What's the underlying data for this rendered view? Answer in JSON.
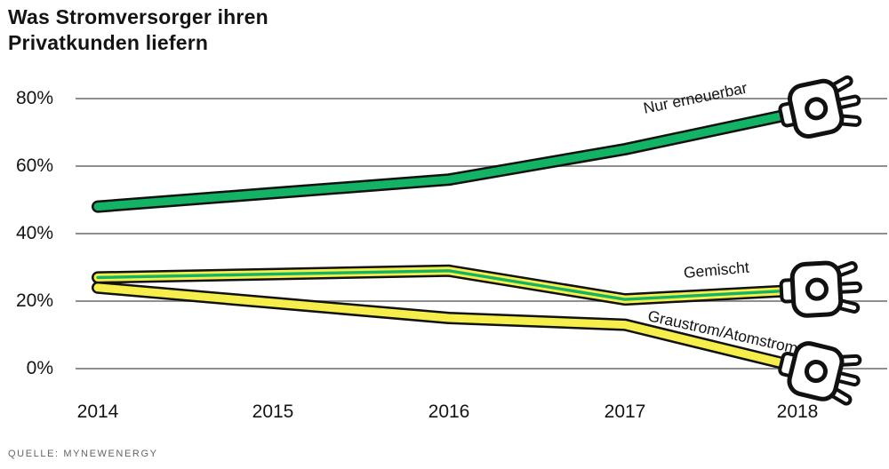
{
  "title": {
    "line1": "Was Stromversorger ihren",
    "line2": "Privatkunden liefern"
  },
  "source": "QUELLE: MYNEWENERGY",
  "colors": {
    "green": "#12b364",
    "yellow": "#f6ef4b",
    "cable_outline": "#111111",
    "grid": "#8f8f8f",
    "text": "#141414",
    "source_text": "#646464",
    "plug_fill": "#ffffff"
  },
  "chart_data": {
    "type": "line",
    "title": "Was Stromversorger ihren Privatkunden liefern",
    "x": [
      "2014",
      "2015",
      "2016",
      "2017",
      "2018"
    ],
    "ylim": [
      0,
      80
    ],
    "y_ticks": [
      "0%",
      "20%",
      "40%",
      "60%",
      "80%"
    ],
    "grid": "horizontal-only",
    "legend_position": "inline-labels-on-lines",
    "series": [
      {
        "name": "Nur erneuerbar",
        "style": "green-cable",
        "values": [
          48,
          52,
          56,
          65,
          75
        ]
      },
      {
        "name": "Gemischt",
        "style": "yellow-cable-green-stripe",
        "values": [
          27,
          28,
          29,
          20.5,
          23
        ]
      },
      {
        "name": "Graustrom/Atomstrom",
        "style": "yellow-cable",
        "values": [
          24,
          19.5,
          15,
          13,
          1.5
        ]
      }
    ],
    "source": "QUELLE: MYNEWENERGY"
  }
}
